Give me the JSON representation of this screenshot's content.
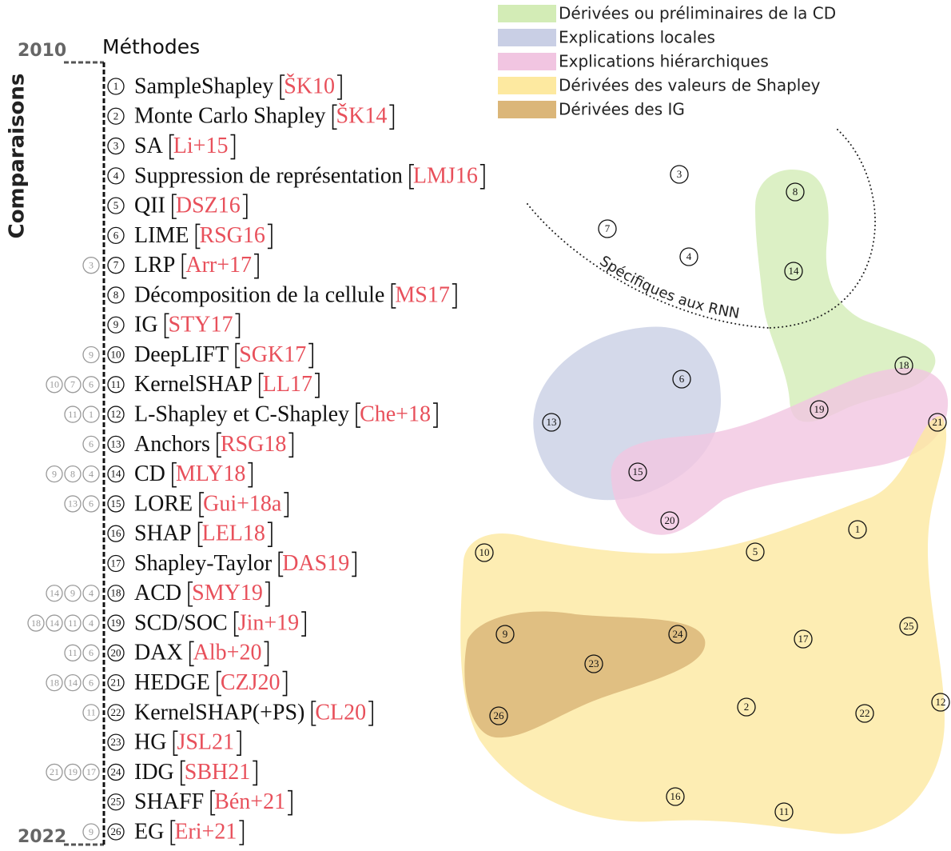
{
  "axis": {
    "label": "Comparaisons",
    "start": "2010",
    "end": "2022"
  },
  "list_title": "Méthodes",
  "legend": [
    {
      "label": "Dérivées ou préliminaires de la CD",
      "color": "#d3ecb6"
    },
    {
      "label": "Explications locales",
      "color": "#c9cfe5"
    },
    {
      "label": "Explications hiérarchiques",
      "color": "#f1c5e1"
    },
    {
      "label": "Dérivées des valeurs de Shapley",
      "color": "#fde9a0"
    },
    {
      "label": "Dérivées des IG",
      "color": "#dbb679"
    }
  ],
  "methods": [
    {
      "number": 1,
      "name": "SampleShapley",
      "citation": "ŠK10",
      "comparisons": []
    },
    {
      "number": 2,
      "name": "Monte Carlo Shapley",
      "citation": "ŠK14",
      "comparisons": []
    },
    {
      "number": 3,
      "name": "SA",
      "citation": "Li+15",
      "comparisons": []
    },
    {
      "number": 4,
      "name": "Suppression de représentation",
      "citation": "LMJ16",
      "comparisons": []
    },
    {
      "number": 5,
      "name": "QII",
      "citation": "DSZ16",
      "comparisons": []
    },
    {
      "number": 6,
      "name": "LIME",
      "citation": "RSG16",
      "comparisons": []
    },
    {
      "number": 7,
      "name": "LRP",
      "citation": "Arr+17",
      "comparisons": [
        3
      ]
    },
    {
      "number": 8,
      "name": "Décomposition de la cellule",
      "citation": "MS17",
      "comparisons": []
    },
    {
      "number": 9,
      "name": "IG",
      "citation": "STY17",
      "comparisons": []
    },
    {
      "number": 10,
      "name": "DeepLIFT",
      "citation": "SGK17",
      "comparisons": [
        9
      ]
    },
    {
      "number": 11,
      "name": "KernelSHAP",
      "citation": "LL17",
      "comparisons": [
        10,
        7,
        6
      ]
    },
    {
      "number": 12,
      "name": "L-Shapley et C-Shapley",
      "citation": "Che+18",
      "comparisons": [
        11,
        1
      ]
    },
    {
      "number": 13,
      "name": "Anchors",
      "citation": "RSG18",
      "comparisons": [
        6
      ]
    },
    {
      "number": 14,
      "name": "CD",
      "citation": "MLY18",
      "comparisons": [
        9,
        8,
        4
      ]
    },
    {
      "number": 15,
      "name": "LORE",
      "citation": "Gui+18a",
      "comparisons": [
        13,
        6
      ]
    },
    {
      "number": 16,
      "name": "SHAP",
      "citation": "LEL18",
      "comparisons": []
    },
    {
      "number": 17,
      "name": "Shapley-Taylor",
      "citation": "DAS19",
      "comparisons": []
    },
    {
      "number": 18,
      "name": "ACD",
      "citation": "SMY19",
      "comparisons": [
        14,
        9,
        4
      ]
    },
    {
      "number": 19,
      "name": "SCD/SOC",
      "citation": "Jin+19",
      "comparisons": [
        18,
        14,
        11,
        4
      ]
    },
    {
      "number": 20,
      "name": "DAX",
      "citation": "Alb+20",
      "comparisons": [
        11,
        6
      ]
    },
    {
      "number": 21,
      "name": "HEDGE",
      "citation": "CZJ20",
      "comparisons": [
        18,
        14,
        6
      ]
    },
    {
      "number": 22,
      "name": "KernelSHAP(+PS)",
      "citation": "CL20",
      "comparisons": [
        11
      ]
    },
    {
      "number": 23,
      "name": "HG",
      "citation": "JSL21",
      "comparisons": []
    },
    {
      "number": 24,
      "name": "IDG",
      "citation": "SBH21",
      "comparisons": [
        21,
        19,
        17
      ]
    },
    {
      "number": 25,
      "name": "SHAFF",
      "citation": "Bén+21",
      "comparisons": []
    },
    {
      "number": 26,
      "name": "EG",
      "citation": "Eri+21",
      "comparisons": [
        9
      ]
    }
  ],
  "region_label": "Spécifiques aux RNN",
  "nodes": [
    {
      "label": 3
    },
    {
      "label": 8
    },
    {
      "label": 7
    },
    {
      "label": 4
    },
    {
      "label": 14
    },
    {
      "label": 6
    },
    {
      "label": 18
    },
    {
      "label": 19
    },
    {
      "label": 21
    },
    {
      "label": 13
    },
    {
      "label": 15
    },
    {
      "label": 20
    },
    {
      "label": 1
    },
    {
      "label": 5
    },
    {
      "label": 10
    },
    {
      "label": 9
    },
    {
      "label": 24
    },
    {
      "label": 17
    },
    {
      "label": 25
    },
    {
      "label": 23
    },
    {
      "label": 2
    },
    {
      "label": 22
    },
    {
      "label": 12
    },
    {
      "label": 26
    },
    {
      "label": 16
    },
    {
      "label": 11
    }
  ]
}
